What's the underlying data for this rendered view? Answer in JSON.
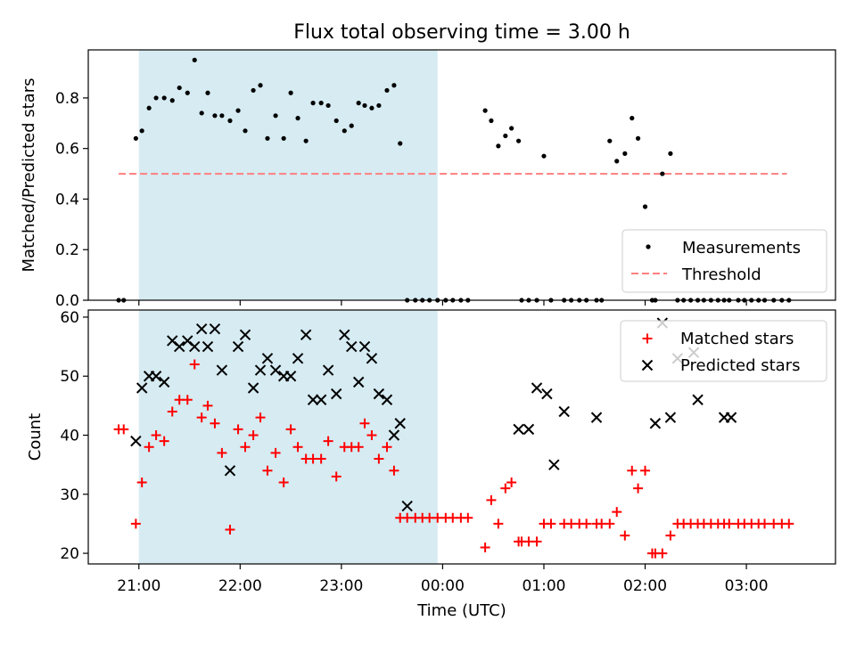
{
  "title": "Flux total observing time = 3.00 h",
  "chart_data": [
    {
      "type": "scatter",
      "ylabel": "Matched/Predicted stars",
      "xlabel": "",
      "x_axis_unit": "hours since 00:00 UTC",
      "xlim": [
        -3.5,
        3.88
      ],
      "ylim": [
        0.0,
        0.99
      ],
      "yticks": [
        "0.0",
        "0.2",
        "0.4",
        "0.6",
        "0.8"
      ],
      "shaded_span": [
        -3.0,
        -0.05
      ],
      "threshold": {
        "value": 0.5,
        "x_range": [
          -3.2,
          3.4
        ],
        "color": "#ff7f7f"
      },
      "legend": {
        "placement": "lower right",
        "entries": [
          "Measurements",
          "Threshold"
        ]
      },
      "series": [
        {
          "name": "Measurements",
          "color": "#000000",
          "x": [
            -3.2,
            -3.15,
            -3.03,
            -2.97,
            -2.9,
            -2.83,
            -2.75,
            -2.67,
            -2.6,
            -2.52,
            -2.45,
            -2.38,
            -2.32,
            -2.25,
            -2.18,
            -2.1,
            -2.02,
            -1.95,
            -1.87,
            -1.8,
            -1.73,
            -1.65,
            -1.57,
            -1.5,
            -1.43,
            -1.35,
            -1.28,
            -1.2,
            -1.13,
            -1.05,
            -0.97,
            -0.9,
            -0.83,
            -0.77,
            -0.7,
            -0.63,
            -0.55,
            -0.48,
            -0.42,
            -0.35,
            -0.27,
            -0.2,
            -0.13,
            -0.05,
            0.03,
            0.1,
            0.18,
            0.25,
            0.42,
            0.48,
            0.55,
            0.62,
            0.68,
            0.75,
            0.78,
            0.85,
            0.93,
            1.0,
            1.07,
            1.2,
            1.27,
            1.35,
            1.42,
            1.52,
            1.57,
            1.65,
            1.72,
            1.8,
            1.87,
            1.93,
            2.0,
            2.07,
            2.1,
            2.17,
            2.25,
            2.32,
            2.38,
            2.45,
            2.52,
            2.58,
            2.65,
            2.72,
            2.78,
            2.83,
            2.92,
            2.98,
            3.05,
            3.12,
            3.18,
            3.27,
            3.35,
            3.42
          ],
          "y": [
            0,
            0,
            0.64,
            0.67,
            0.76,
            0.8,
            0.8,
            0.79,
            0.84,
            0.82,
            0.95,
            0.74,
            0.82,
            0.73,
            0.73,
            0.71,
            0.75,
            0.67,
            0.83,
            0.85,
            0.64,
            0.73,
            0.64,
            0.82,
            0.72,
            0.63,
            0.78,
            0.78,
            0.77,
            0.71,
            0.67,
            0.69,
            0.78,
            0.77,
            0.76,
            0.77,
            0.83,
            0.85,
            0.62,
            0,
            0,
            0,
            0,
            0,
            0,
            0,
            0,
            0,
            0.75,
            0.71,
            0.61,
            0.65,
            0.68,
            0.63,
            0,
            0,
            0,
            0.57,
            0,
            0,
            0,
            0,
            0,
            0,
            0,
            0.63,
            0.55,
            0.58,
            0.72,
            0.64,
            0.37,
            0,
            0,
            0.5,
            0.58,
            0,
            0,
            0,
            0,
            0,
            0,
            0,
            0,
            0,
            0,
            0,
            0,
            0,
            0,
            0,
            0,
            0
          ]
        }
      ]
    },
    {
      "type": "scatter",
      "ylabel": "Count",
      "xlabel": "Time (UTC)",
      "x_axis_unit": "hours since 00:00 UTC",
      "xlim": [
        -3.5,
        3.88
      ],
      "ylim": [
        18.2,
        61.2
      ],
      "yticks": [
        "20",
        "30",
        "40",
        "50",
        "60"
      ],
      "xticks": [
        {
          "value": -3,
          "label": "21:00"
        },
        {
          "value": -2,
          "label": "22:00"
        },
        {
          "value": -1,
          "label": "23:00"
        },
        {
          "value": 0,
          "label": "00:00"
        },
        {
          "value": 1,
          "label": "01:00"
        },
        {
          "value": 2,
          "label": "02:00"
        },
        {
          "value": 3,
          "label": "03:00"
        }
      ],
      "shaded_span": [
        -3.0,
        -0.05
      ],
      "legend": {
        "placement": "upper right",
        "entries": [
          "Matched stars",
          "Predicted stars"
        ]
      },
      "series": [
        {
          "name": "Matched stars",
          "color": "#ff0000",
          "marker": "plus",
          "x": [
            -3.2,
            -3.15,
            -3.03,
            -2.97,
            -2.9,
            -2.83,
            -2.75,
            -2.67,
            -2.6,
            -2.52,
            -2.45,
            -2.38,
            -2.32,
            -2.25,
            -2.18,
            -2.1,
            -2.02,
            -1.95,
            -1.87,
            -1.8,
            -1.73,
            -1.65,
            -1.57,
            -1.5,
            -1.43,
            -1.35,
            -1.28,
            -1.2,
            -1.13,
            -1.05,
            -0.97,
            -0.9,
            -0.83,
            -0.77,
            -0.7,
            -0.63,
            -0.55,
            -0.48,
            -0.42,
            -0.35,
            -0.27,
            -0.2,
            -0.13,
            -0.05,
            0.03,
            0.1,
            0.18,
            0.25,
            0.42,
            0.48,
            0.55,
            0.62,
            0.68,
            0.75,
            0.78,
            0.85,
            0.93,
            1.0,
            1.07,
            1.2,
            1.27,
            1.35,
            1.42,
            1.52,
            1.57,
            1.65,
            1.72,
            1.8,
            1.87,
            1.93,
            2.0,
            2.07,
            2.1,
            2.17,
            2.25,
            2.32,
            2.38,
            2.45,
            2.52,
            2.58,
            2.65,
            2.72,
            2.78,
            2.83,
            2.92,
            2.98,
            3.05,
            3.12,
            3.18,
            3.27,
            3.35,
            3.42
          ],
          "y": [
            41,
            41,
            25,
            32,
            38,
            40,
            39,
            44,
            46,
            46,
            52,
            43,
            45,
            42,
            37,
            24,
            41,
            38,
            40,
            43,
            34,
            37,
            32,
            41,
            38,
            36,
            36,
            36,
            39,
            33,
            38,
            38,
            38,
            42,
            40,
            36,
            38,
            34,
            26,
            26,
            26,
            26,
            26,
            26,
            26,
            26,
            26,
            26,
            21,
            29,
            25,
            31,
            32,
            22,
            22,
            22,
            22,
            25,
            25,
            25,
            25,
            25,
            25,
            25,
            25,
            25,
            27,
            23,
            34,
            31,
            34,
            20,
            20,
            20,
            23,
            25,
            25,
            25,
            25,
            25,
            25,
            25,
            25,
            25,
            25,
            25,
            25,
            25,
            25,
            25,
            25,
            25
          ]
        },
        {
          "name": "Predicted stars",
          "color": "#000000",
          "marker": "x",
          "x": [
            -3.03,
            -2.97,
            -2.9,
            -2.83,
            -2.75,
            -2.67,
            -2.6,
            -2.52,
            -2.45,
            -2.38,
            -2.32,
            -2.25,
            -2.18,
            -2.1,
            -2.02,
            -1.95,
            -1.87,
            -1.8,
            -1.73,
            -1.65,
            -1.57,
            -1.5,
            -1.43,
            -1.35,
            -1.28,
            -1.2,
            -1.13,
            -1.05,
            -0.97,
            -0.9,
            -0.83,
            -0.77,
            -0.7,
            -0.63,
            -0.55,
            -0.48,
            -0.42,
            -0.35,
            0.75,
            0.85,
            0.93,
            1.03,
            1.1,
            1.2,
            1.52,
            2.1,
            2.17,
            2.25,
            2.32,
            2.48,
            2.52,
            2.78,
            2.85
          ],
          "y": [
            39,
            48,
            50,
            50,
            49,
            56,
            55,
            56,
            55,
            58,
            55,
            58,
            51,
            34,
            55,
            57,
            48,
            51,
            53,
            51,
            50,
            50,
            53,
            57,
            46,
            46,
            51,
            47,
            57,
            55,
            49,
            55,
            53,
            47,
            46,
            40,
            42,
            28,
            41,
            41,
            48,
            47,
            35,
            44,
            43,
            42,
            59,
            43,
            53,
            54,
            46,
            43,
            43
          ]
        }
      ]
    }
  ]
}
